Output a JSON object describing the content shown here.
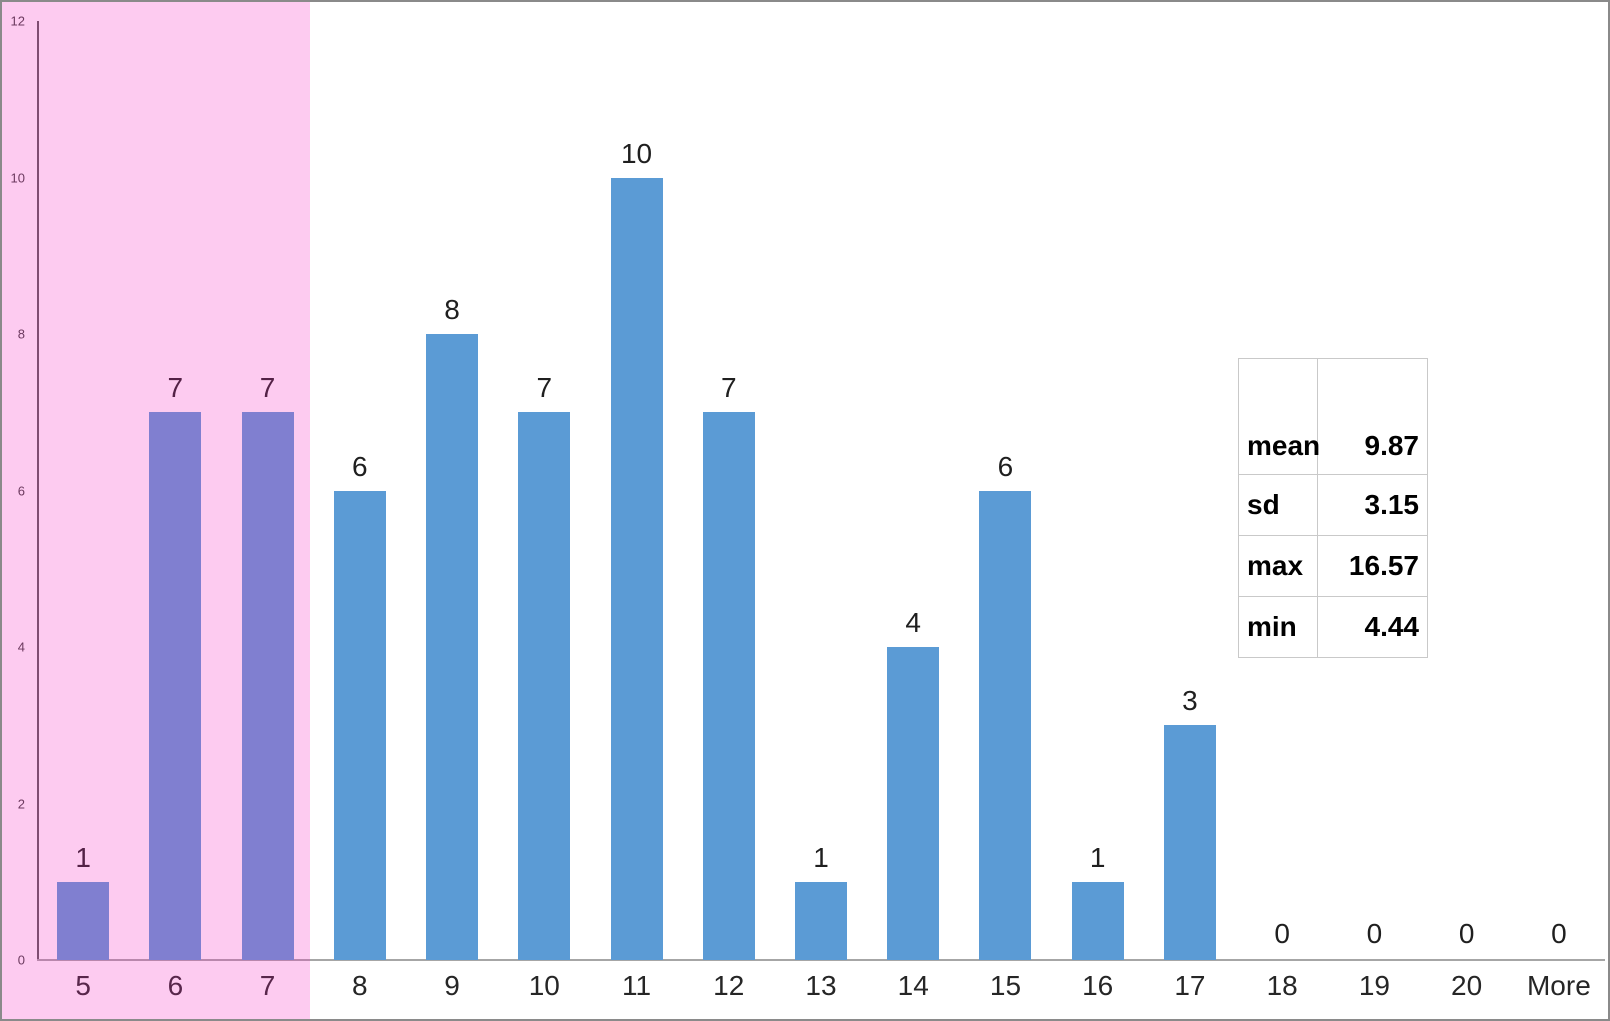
{
  "chart_data": {
    "type": "bar",
    "title": "",
    "xlabel": "",
    "ylabel": "",
    "categories": [
      "5",
      "6",
      "7",
      "8",
      "9",
      "10",
      "11",
      "12",
      "13",
      "14",
      "15",
      "16",
      "17",
      "18",
      "19",
      "20",
      "More"
    ],
    "values": [
      1,
      7,
      7,
      6,
      8,
      7,
      10,
      7,
      1,
      4,
      6,
      1,
      3,
      0,
      0,
      0,
      0
    ],
    "data_labels": [
      "1",
      "7",
      "7",
      "6",
      "8",
      "7",
      "10",
      "7",
      "1",
      "4",
      "6",
      "1",
      "3",
      "0",
      "0",
      "0",
      "0"
    ],
    "ylim": [
      0,
      12
    ],
    "yticks": [
      "0",
      "2",
      "4",
      "6",
      "8",
      "10",
      "12"
    ],
    "grid": "off",
    "bar_color": "#5b9bd5",
    "highlighted_bar_color_appearance": "#8181d1",
    "highlight_region": {
      "categories": [
        "5",
        "6",
        "7"
      ],
      "overlay_color": "#f628c0",
      "overlay_opacity": 0.245,
      "appearance_color": "#fdc9f0"
    }
  },
  "stats_table": {
    "rows": [
      {
        "label": "mean",
        "value": "9.87"
      },
      {
        "label": "sd",
        "value": "3.15"
      },
      {
        "label": "max",
        "value": "16.57"
      },
      {
        "label": "min",
        "value": "4.44"
      }
    ]
  }
}
